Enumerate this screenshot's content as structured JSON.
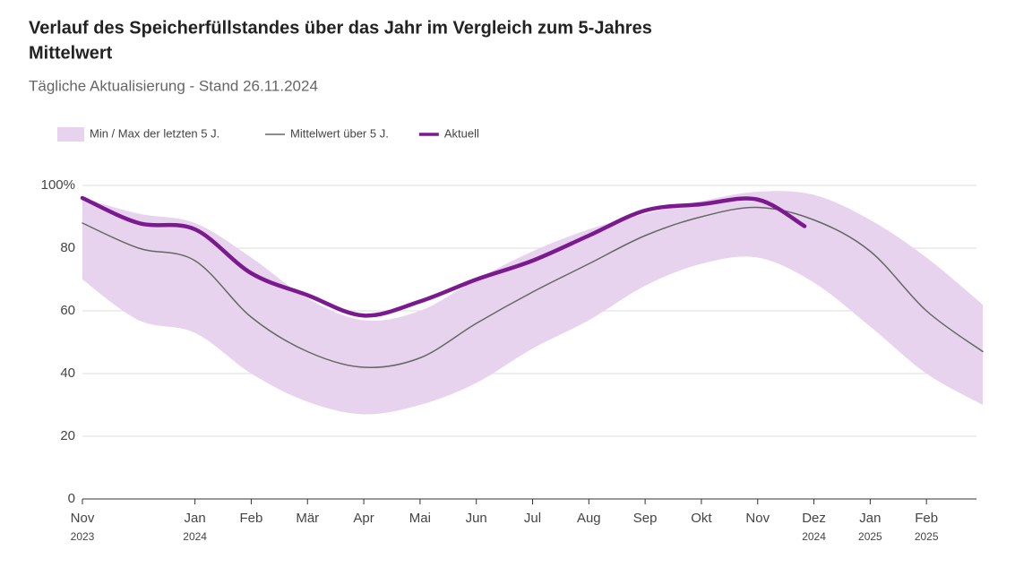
{
  "chart_data": {
    "type": "line",
    "title": "Verlauf des Speicherfüllstandes über das Jahr im Vergleich zum 5-Jahres",
    "title_line2": "Mittelwert",
    "subtitle": "Tägliche Aktualisierung - Stand 26.11.2024",
    "x": [
      "2023-11",
      "2023-12",
      "2024-01",
      "2024-02",
      "2024-03",
      "2024-04",
      "2024-05",
      "2024-06",
      "2024-07",
      "2024-08",
      "2024-09",
      "2024-10",
      "2024-11",
      "2024-12",
      "2025-01",
      "2025-02",
      "2025-03"
    ],
    "band": {
      "name": "Min / Max der letzten 5 J.",
      "color": "#e8d3ef",
      "high": [
        96,
        91,
        88,
        77,
        64,
        57,
        60,
        70,
        79,
        86,
        91,
        95,
        98,
        97,
        89,
        77,
        62
      ],
      "low": [
        70,
        57,
        53,
        40,
        31,
        27,
        30,
        37,
        48,
        57,
        68,
        75,
        77,
        69,
        55,
        40,
        30
      ]
    },
    "series": [
      {
        "name": "Mittelwert über 5 J.",
        "color": "#666666",
        "width": 1.5,
        "values": [
          88,
          80,
          76,
          58,
          47,
          42,
          45,
          56,
          66,
          75,
          84,
          90,
          93,
          89,
          79,
          60,
          47
        ]
      },
      {
        "name": "Aktuell",
        "color": "#7b1a8f",
        "width": 4.5,
        "x": [
          "2023-11",
          "2023-12",
          "2024-01",
          "2024-02",
          "2024-03",
          "2024-04",
          "2024-05",
          "2024-06",
          "2024-07",
          "2024-08",
          "2024-09",
          "2024-10",
          "2024-11",
          "2024-11-26"
        ],
        "values": [
          96,
          88,
          86,
          72,
          65,
          58.5,
          63,
          70,
          76,
          84,
          92,
          94,
          95.5,
          87
        ]
      }
    ],
    "xlim": [
      "2023-11",
      "2025-03"
    ],
    "xticks": [
      {
        "value": "2023-11",
        "label": "Nov",
        "year": "2023"
      },
      {
        "value": "2024-01",
        "label": "Jan",
        "year": "2024"
      },
      {
        "value": "2024-02",
        "label": "Feb"
      },
      {
        "value": "2024-03",
        "label": "Mär"
      },
      {
        "value": "2024-04",
        "label": "Apr"
      },
      {
        "value": "2024-05",
        "label": "Mai"
      },
      {
        "value": "2024-06",
        "label": "Jun"
      },
      {
        "value": "2024-07",
        "label": "Jul"
      },
      {
        "value": "2024-08",
        "label": "Aug"
      },
      {
        "value": "2024-09",
        "label": "Sep"
      },
      {
        "value": "2024-10",
        "label": "Okt"
      },
      {
        "value": "2024-11",
        "label": "Nov"
      },
      {
        "value": "2024-12",
        "label": "Dez",
        "year": "2024"
      },
      {
        "value": "2025-01",
        "label": "Jan",
        "year": "2025"
      },
      {
        "value": "2025-02",
        "label": "Feb",
        "year": "2025"
      }
    ],
    "ylim": [
      0,
      100
    ],
    "yticks": [
      0,
      20,
      40,
      60,
      80,
      {
        "value": 100,
        "label": "100%"
      }
    ],
    "grid": true
  }
}
